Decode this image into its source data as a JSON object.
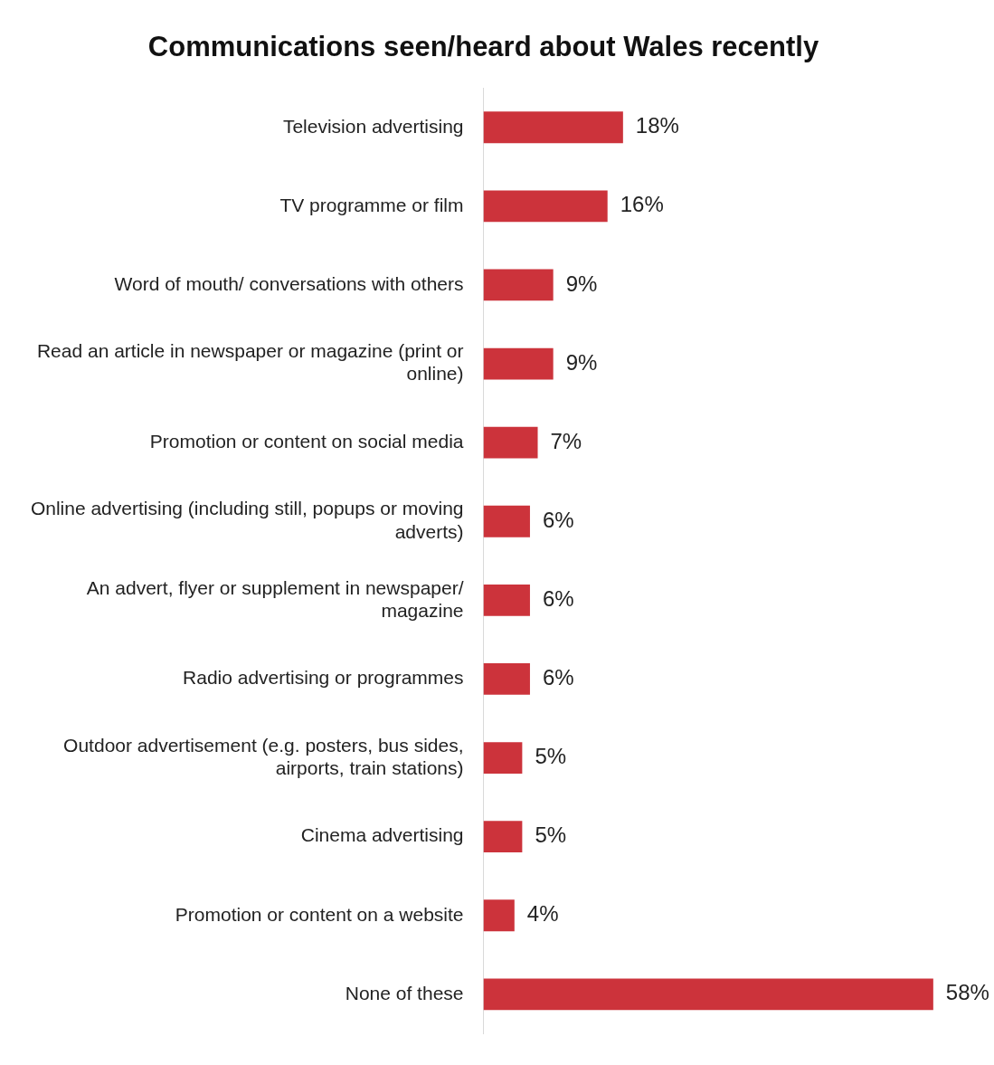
{
  "chart_data": {
    "type": "bar",
    "orientation": "horizontal",
    "title": "Communications seen/heard about Wales recently",
    "categories": [
      "Television advertising",
      "TV programme or film",
      "Word of mouth/ conversations with others",
      "Read an article in newspaper or magazine (print or online)",
      "Promotion or content on social media",
      "Online advertising (including still, popups or moving adverts)",
      "An advert, flyer or supplement in newspaper/ magazine",
      "Radio advertising or programmes",
      "Outdoor advertisement (e.g. posters, bus sides, airports, train stations)",
      "Cinema advertising",
      "Promotion or content on a website",
      "None of these"
    ],
    "values": [
      18,
      16,
      9,
      9,
      7,
      6,
      6,
      6,
      5,
      5,
      4,
      58
    ],
    "value_labels": [
      "18%",
      "16%",
      "9%",
      "9%",
      "7%",
      "6%",
      "6%",
      "6%",
      "5%",
      "5%",
      "4%",
      "58%"
    ],
    "color": "#cc333b",
    "grid": false,
    "legend": false,
    "tick_labels": "y"
  }
}
